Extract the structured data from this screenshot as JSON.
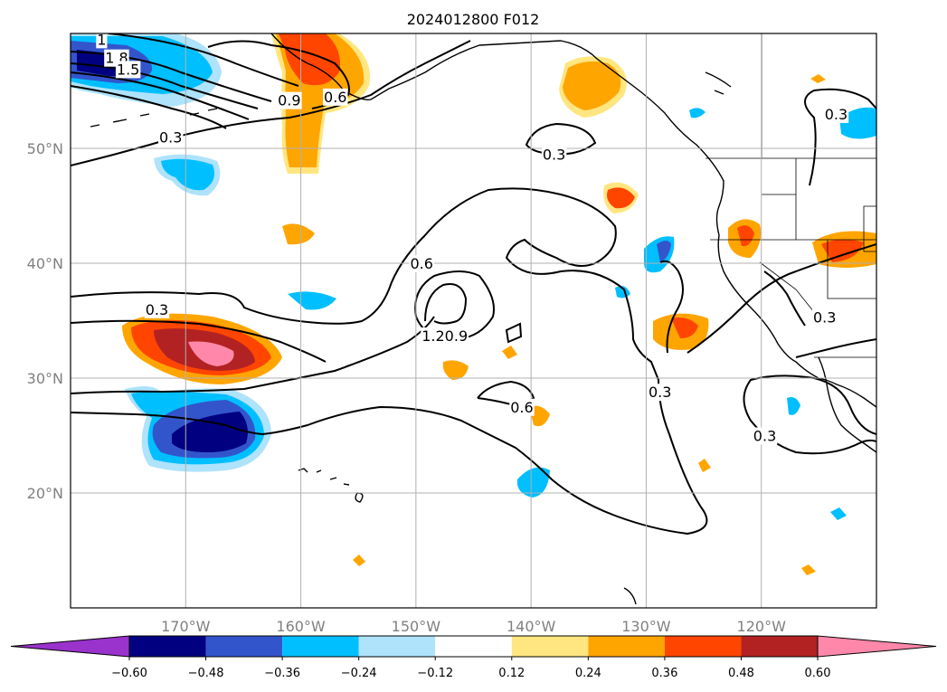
{
  "chart_data": {
    "type": "contour-map",
    "title": "2024012800 F012",
    "lon_ticks": [
      {
        "value": -170,
        "label": "170°W"
      },
      {
        "value": -160,
        "label": "160°W"
      },
      {
        "value": -150,
        "label": "150°W"
      },
      {
        "value": -140,
        "label": "140°W"
      },
      {
        "value": -130,
        "label": "130°W"
      },
      {
        "value": -120,
        "label": "120°W"
      }
    ],
    "lat_ticks": [
      {
        "value": 50,
        "label": "50°N"
      },
      {
        "value": 40,
        "label": "40°N"
      },
      {
        "value": 30,
        "label": "30°N"
      },
      {
        "value": 20,
        "label": "20°N"
      }
    ],
    "extent": {
      "lon": [
        -180,
        -110
      ],
      "lat": [
        10,
        60
      ]
    },
    "grid": true,
    "colorbar": {
      "orientation": "horizontal",
      "extend": "both",
      "levels": [
        -0.72,
        -0.6,
        -0.48,
        -0.36,
        -0.24,
        -0.12,
        0.12,
        0.24,
        0.36,
        0.48,
        0.6,
        0.72
      ],
      "colors": [
        "#9933cc",
        "#000080",
        "#3355cc",
        "#00bfff",
        "#aee3fb",
        "#ffffff",
        "#ffe680",
        "#ffa500",
        "#ff4500",
        "#b22222",
        "#ff88aa",
        "#ff88aa"
      ],
      "tick_labels": [
        "−0.60",
        "−0.48",
        "−0.36",
        "−0.24",
        "−0.12",
        "0.12",
        "0.24",
        "0.36",
        "0.48",
        "0.60"
      ]
    },
    "contour_labels": [
      {
        "text": "1",
        "lon": -177.3,
        "lat": 59.5
      },
      {
        "text": "1.8",
        "lon": -176.0,
        "lat": 57.9
      },
      {
        "text": "1.5",
        "lon": -175.0,
        "lat": 56.9
      },
      {
        "text": "0.9",
        "lon": -161.0,
        "lat": 54.2
      },
      {
        "text": "0.6",
        "lon": -157.0,
        "lat": 54.5
      },
      {
        "text": "0.3",
        "lon": -171.3,
        "lat": 51.0
      },
      {
        "text": "0.3",
        "lon": -138.0,
        "lat": 49.5
      },
      {
        "text": "0.6",
        "lon": -149.5,
        "lat": 40.0
      },
      {
        "text": "0.3",
        "lon": -172.5,
        "lat": 36.0
      },
      {
        "text": "1.2",
        "lon": -148.5,
        "lat": 33.7
      },
      {
        "text": "0.9",
        "lon": -146.5,
        "lat": 33.7
      },
      {
        "text": "0.6",
        "lon": -140.8,
        "lat": 27.5
      },
      {
        "text": "0.3",
        "lon": -128.8,
        "lat": 28.8
      },
      {
        "text": "0.3",
        "lon": -119.7,
        "lat": 25.0
      },
      {
        "text": "0.3",
        "lon": -114.5,
        "lat": 35.3
      },
      {
        "text": "0.3",
        "lon": -113.5,
        "lat": 53.0
      }
    ]
  }
}
